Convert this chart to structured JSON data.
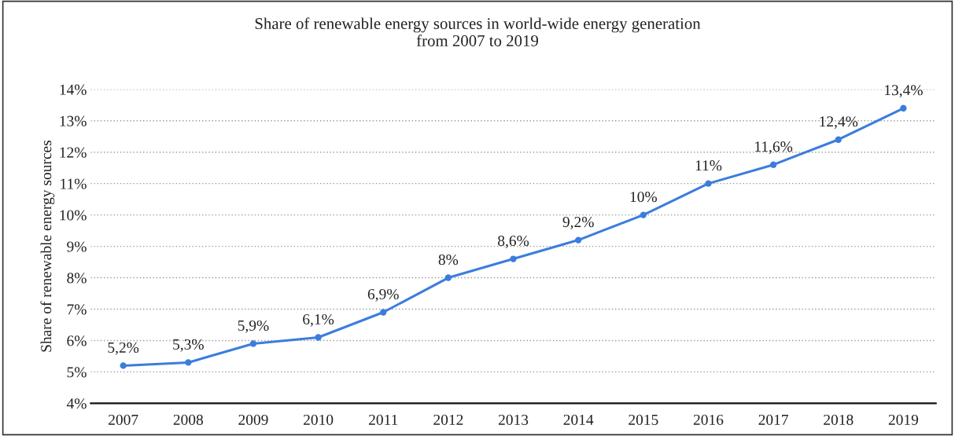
{
  "chart_data": {
    "type": "line",
    "title": "Share of renewable energy sources in world-wide energy generation\nfrom 2007 to 2019",
    "ylabel": "Share of renewable energy sources",
    "categories": [
      "2007",
      "2008",
      "2009",
      "2010",
      "2011",
      "2012",
      "2013",
      "2014",
      "2015",
      "2016",
      "2017",
      "2018",
      "2019"
    ],
    "series": [
      {
        "color": "#3b7ddd",
        "values": [
          5.2,
          5.3,
          5.9,
          6.1,
          6.9,
          8,
          8.6,
          9.2,
          10,
          11,
          11.6,
          12.4,
          13.4
        ],
        "value_labels": [
          "5,2%",
          "5,3%",
          "5,9%",
          "6,1%",
          "6,9%",
          "8%",
          "8,6%",
          "9,2%",
          "10%",
          "11%",
          "11,6%",
          "12,4%",
          "13,4%"
        ]
      }
    ],
    "ylim": [
      4,
      14
    ],
    "yticks": [
      {
        "value": 4,
        "label": "4%"
      },
      {
        "value": 5,
        "label": "5%"
      },
      {
        "value": 6,
        "label": "6%"
      },
      {
        "value": 7,
        "label": "7%"
      },
      {
        "value": 8,
        "label": "8%"
      },
      {
        "value": 9,
        "label": "9%"
      },
      {
        "value": 10,
        "label": "10%"
      },
      {
        "value": 11,
        "label": "11%"
      },
      {
        "value": 12,
        "label": "12%"
      },
      {
        "value": 13,
        "label": "13%"
      },
      {
        "value": 14,
        "label": "14%"
      }
    ],
    "grid": "y",
    "marker": "circle",
    "line_style": "solid"
  }
}
